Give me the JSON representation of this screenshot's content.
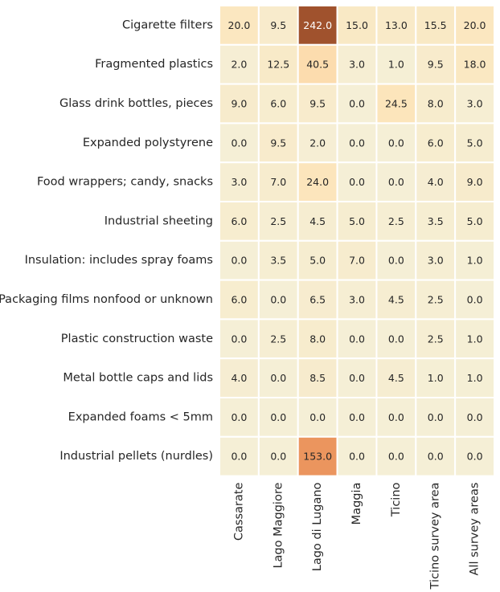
{
  "chart_data": {
    "type": "heatmap",
    "title": "",
    "xlabel": "",
    "ylabel": "",
    "rows": [
      "Cigarette filters",
      "Fragmented plastics",
      "Glass drink bottles, pieces",
      "Expanded polystyrene",
      "Food wrappers; candy, snacks",
      "Industrial sheeting",
      "Insulation: includes spray foams",
      "Packaging films nonfood or unknown",
      "Plastic construction waste",
      "Metal bottle caps and lids",
      "Expanded foams < 5mm",
      "Industrial pellets (nurdles)"
    ],
    "columns": [
      "Cassarate",
      "Lago Maggiore",
      "Lago di Lugano",
      "Maggia",
      "Ticino",
      "Ticino survey area",
      "All survey areas"
    ],
    "values": [
      [
        20.0,
        9.5,
        242.0,
        15.0,
        13.0,
        15.5,
        20.0
      ],
      [
        2.0,
        12.5,
        40.5,
        3.0,
        1.0,
        9.5,
        18.0
      ],
      [
        9.0,
        6.0,
        9.5,
        0.0,
        24.5,
        8.0,
        3.0
      ],
      [
        0.0,
        9.5,
        2.0,
        0.0,
        0.0,
        6.0,
        5.0
      ],
      [
        3.0,
        7.0,
        24.0,
        0.0,
        0.0,
        4.0,
        9.0
      ],
      [
        6.0,
        2.5,
        4.5,
        5.0,
        2.5,
        3.5,
        5.0
      ],
      [
        0.0,
        3.5,
        5.0,
        7.0,
        0.0,
        3.0,
        1.0
      ],
      [
        6.0,
        0.0,
        6.5,
        3.0,
        4.5,
        2.5,
        0.0
      ],
      [
        0.0,
        2.5,
        8.0,
        0.0,
        0.0,
        2.5,
        1.0
      ],
      [
        4.0,
        0.0,
        8.5,
        0.0,
        4.5,
        1.0,
        1.0
      ],
      [
        0.0,
        0.0,
        0.0,
        0.0,
        0.0,
        0.0,
        0.0
      ],
      [
        0.0,
        0.0,
        153.0,
        0.0,
        0.0,
        0.0,
        0.0
      ]
    ],
    "value_format": "one-decimal",
    "colorbar": false,
    "colormap": {
      "low": "#f5efd6",
      "mid": "#fde3b6",
      "high": "#f29b62",
      "max": "#a0522d"
    },
    "vmin": 0,
    "vmax": 242,
    "grid_color": "#ffffff"
  }
}
